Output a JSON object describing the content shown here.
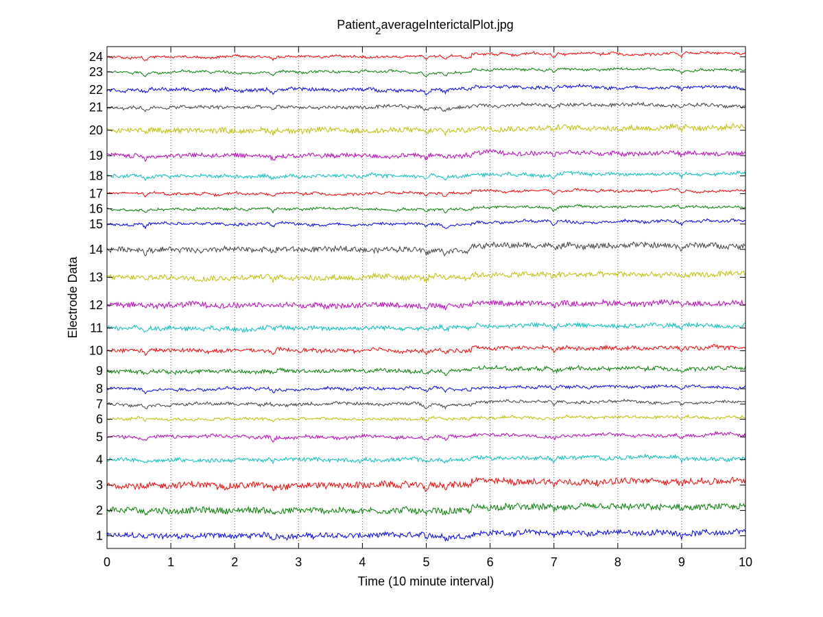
{
  "chart_data": {
    "type": "line",
    "title_main": "Patient",
    "title_sub": "2",
    "title_rest": "averageInterictalPlot.jpg",
    "xlabel": "Time (10 minute interval)",
    "ylabel": "Electrode Data",
    "xlim": [
      0,
      10
    ],
    "x_ticks": [
      "0",
      "1",
      "2",
      "3",
      "4",
      "5",
      "6",
      "7",
      "8",
      "9",
      "10"
    ],
    "grid": "dotted vertical",
    "x_events": [
      0.6,
      2.6,
      5.0,
      5.3,
      7.0,
      9.0
    ],
    "series": [
      {
        "name": "1",
        "color": "#0000ff",
        "level": 1.0,
        "noise": 0.1,
        "shift_after_5": 0.12
      },
      {
        "name": "2",
        "color": "#008000",
        "level": 2.0,
        "noise": 0.12,
        "shift_after_5": 0.12
      },
      {
        "name": "3",
        "color": "#ff0000",
        "level": 3.0,
        "noise": 0.12,
        "shift_after_5": 0.15
      },
      {
        "name": "4",
        "color": "#00bfbf",
        "level": 4.0,
        "noise": 0.07,
        "shift_after_5": 0.08
      },
      {
        "name": "5",
        "color": "#bf00bf",
        "level": 4.9,
        "noise": 0.06,
        "shift_after_5": 0.08
      },
      {
        "name": "6",
        "color": "#bfbf00",
        "level": 5.6,
        "noise": 0.05,
        "shift_after_5": 0.08
      },
      {
        "name": "7",
        "color": "#404040",
        "level": 6.2,
        "noise": 0.05,
        "shift_after_5": 0.08
      },
      {
        "name": "8",
        "color": "#0000ff",
        "level": 6.8,
        "noise": 0.05,
        "shift_after_5": 0.08
      },
      {
        "name": "9",
        "color": "#008000",
        "level": 7.5,
        "noise": 0.07,
        "shift_after_5": 0.1
      },
      {
        "name": "10",
        "color": "#ff0000",
        "level": 8.3,
        "noise": 0.07,
        "shift_after_5": 0.12
      },
      {
        "name": "11",
        "color": "#00bfbf",
        "level": 9.2,
        "noise": 0.08,
        "shift_after_5": 0.1
      },
      {
        "name": "12",
        "color": "#bf00bf",
        "level": 10.1,
        "noise": 0.1,
        "shift_after_5": 0.08
      },
      {
        "name": "13",
        "color": "#bfbf00",
        "level": 11.2,
        "noise": 0.1,
        "shift_after_5": 0.1
      },
      {
        "name": "14",
        "color": "#404040",
        "level": 12.3,
        "noise": 0.1,
        "shift_after_5": 0.15
      },
      {
        "name": "15",
        "color": "#0000ff",
        "level": 13.3,
        "noise": 0.05,
        "shift_after_5": 0.1
      },
      {
        "name": "16",
        "color": "#008000",
        "level": 13.9,
        "noise": 0.04,
        "shift_after_5": 0.08
      },
      {
        "name": "17",
        "color": "#ff0000",
        "level": 14.5,
        "noise": 0.04,
        "shift_after_5": 0.1
      },
      {
        "name": "18",
        "color": "#00bfbf",
        "level": 15.2,
        "noise": 0.06,
        "shift_after_5": 0.08
      },
      {
        "name": "19",
        "color": "#bf00bf",
        "level": 16.0,
        "noise": 0.08,
        "shift_after_5": 0.1
      },
      {
        "name": "20",
        "color": "#bfbf00",
        "level": 17.0,
        "noise": 0.1,
        "shift_after_5": 0.1
      },
      {
        "name": "21",
        "color": "#404040",
        "level": 17.9,
        "noise": 0.06,
        "shift_after_5": 0.1
      },
      {
        "name": "22",
        "color": "#0000ff",
        "level": 18.6,
        "noise": 0.06,
        "shift_after_5": 0.1
      },
      {
        "name": "23",
        "color": "#008000",
        "level": 19.3,
        "noise": 0.04,
        "shift_after_5": 0.1
      },
      {
        "name": "24",
        "color": "#ff0000",
        "level": 19.9,
        "noise": 0.04,
        "shift_after_5": 0.12
      }
    ]
  }
}
